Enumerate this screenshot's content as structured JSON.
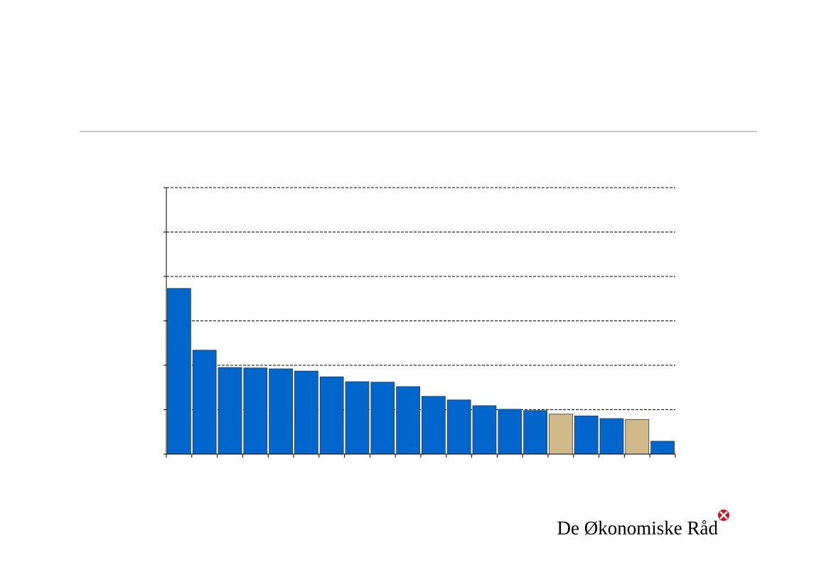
{
  "chart_data": {
    "type": "bar",
    "categories": [
      null,
      null,
      null,
      null,
      null,
      null,
      null,
      null,
      null,
      null,
      null,
      null,
      null,
      null,
      null,
      null,
      null,
      null,
      null,
      null
    ],
    "values": [
      3.73,
      2.34,
      1.95,
      1.94,
      1.92,
      1.87,
      1.74,
      1.63,
      1.62,
      1.52,
      1.3,
      1.22,
      1.09,
      1.01,
      0.98,
      0.9,
      0.86,
      0.8,
      0.78,
      0.29
    ],
    "colors": [
      "#0066cc",
      "#0066cc",
      "#0066cc",
      "#0066cc",
      "#0066cc",
      "#0066cc",
      "#0066cc",
      "#0066cc",
      "#0066cc",
      "#0066cc",
      "#0066cc",
      "#0066cc",
      "#0066cc",
      "#0066cc",
      "#0066cc",
      "#d2b98a",
      "#0066cc",
      "#0066cc",
      "#d2b98a",
      "#0066cc"
    ],
    "ylim": [
      0,
      6
    ],
    "yticks": [
      0,
      1,
      2,
      3,
      4,
      5,
      6
    ],
    "grid": true
  },
  "footer": {
    "logo": "De Økonomiske Råd"
  }
}
